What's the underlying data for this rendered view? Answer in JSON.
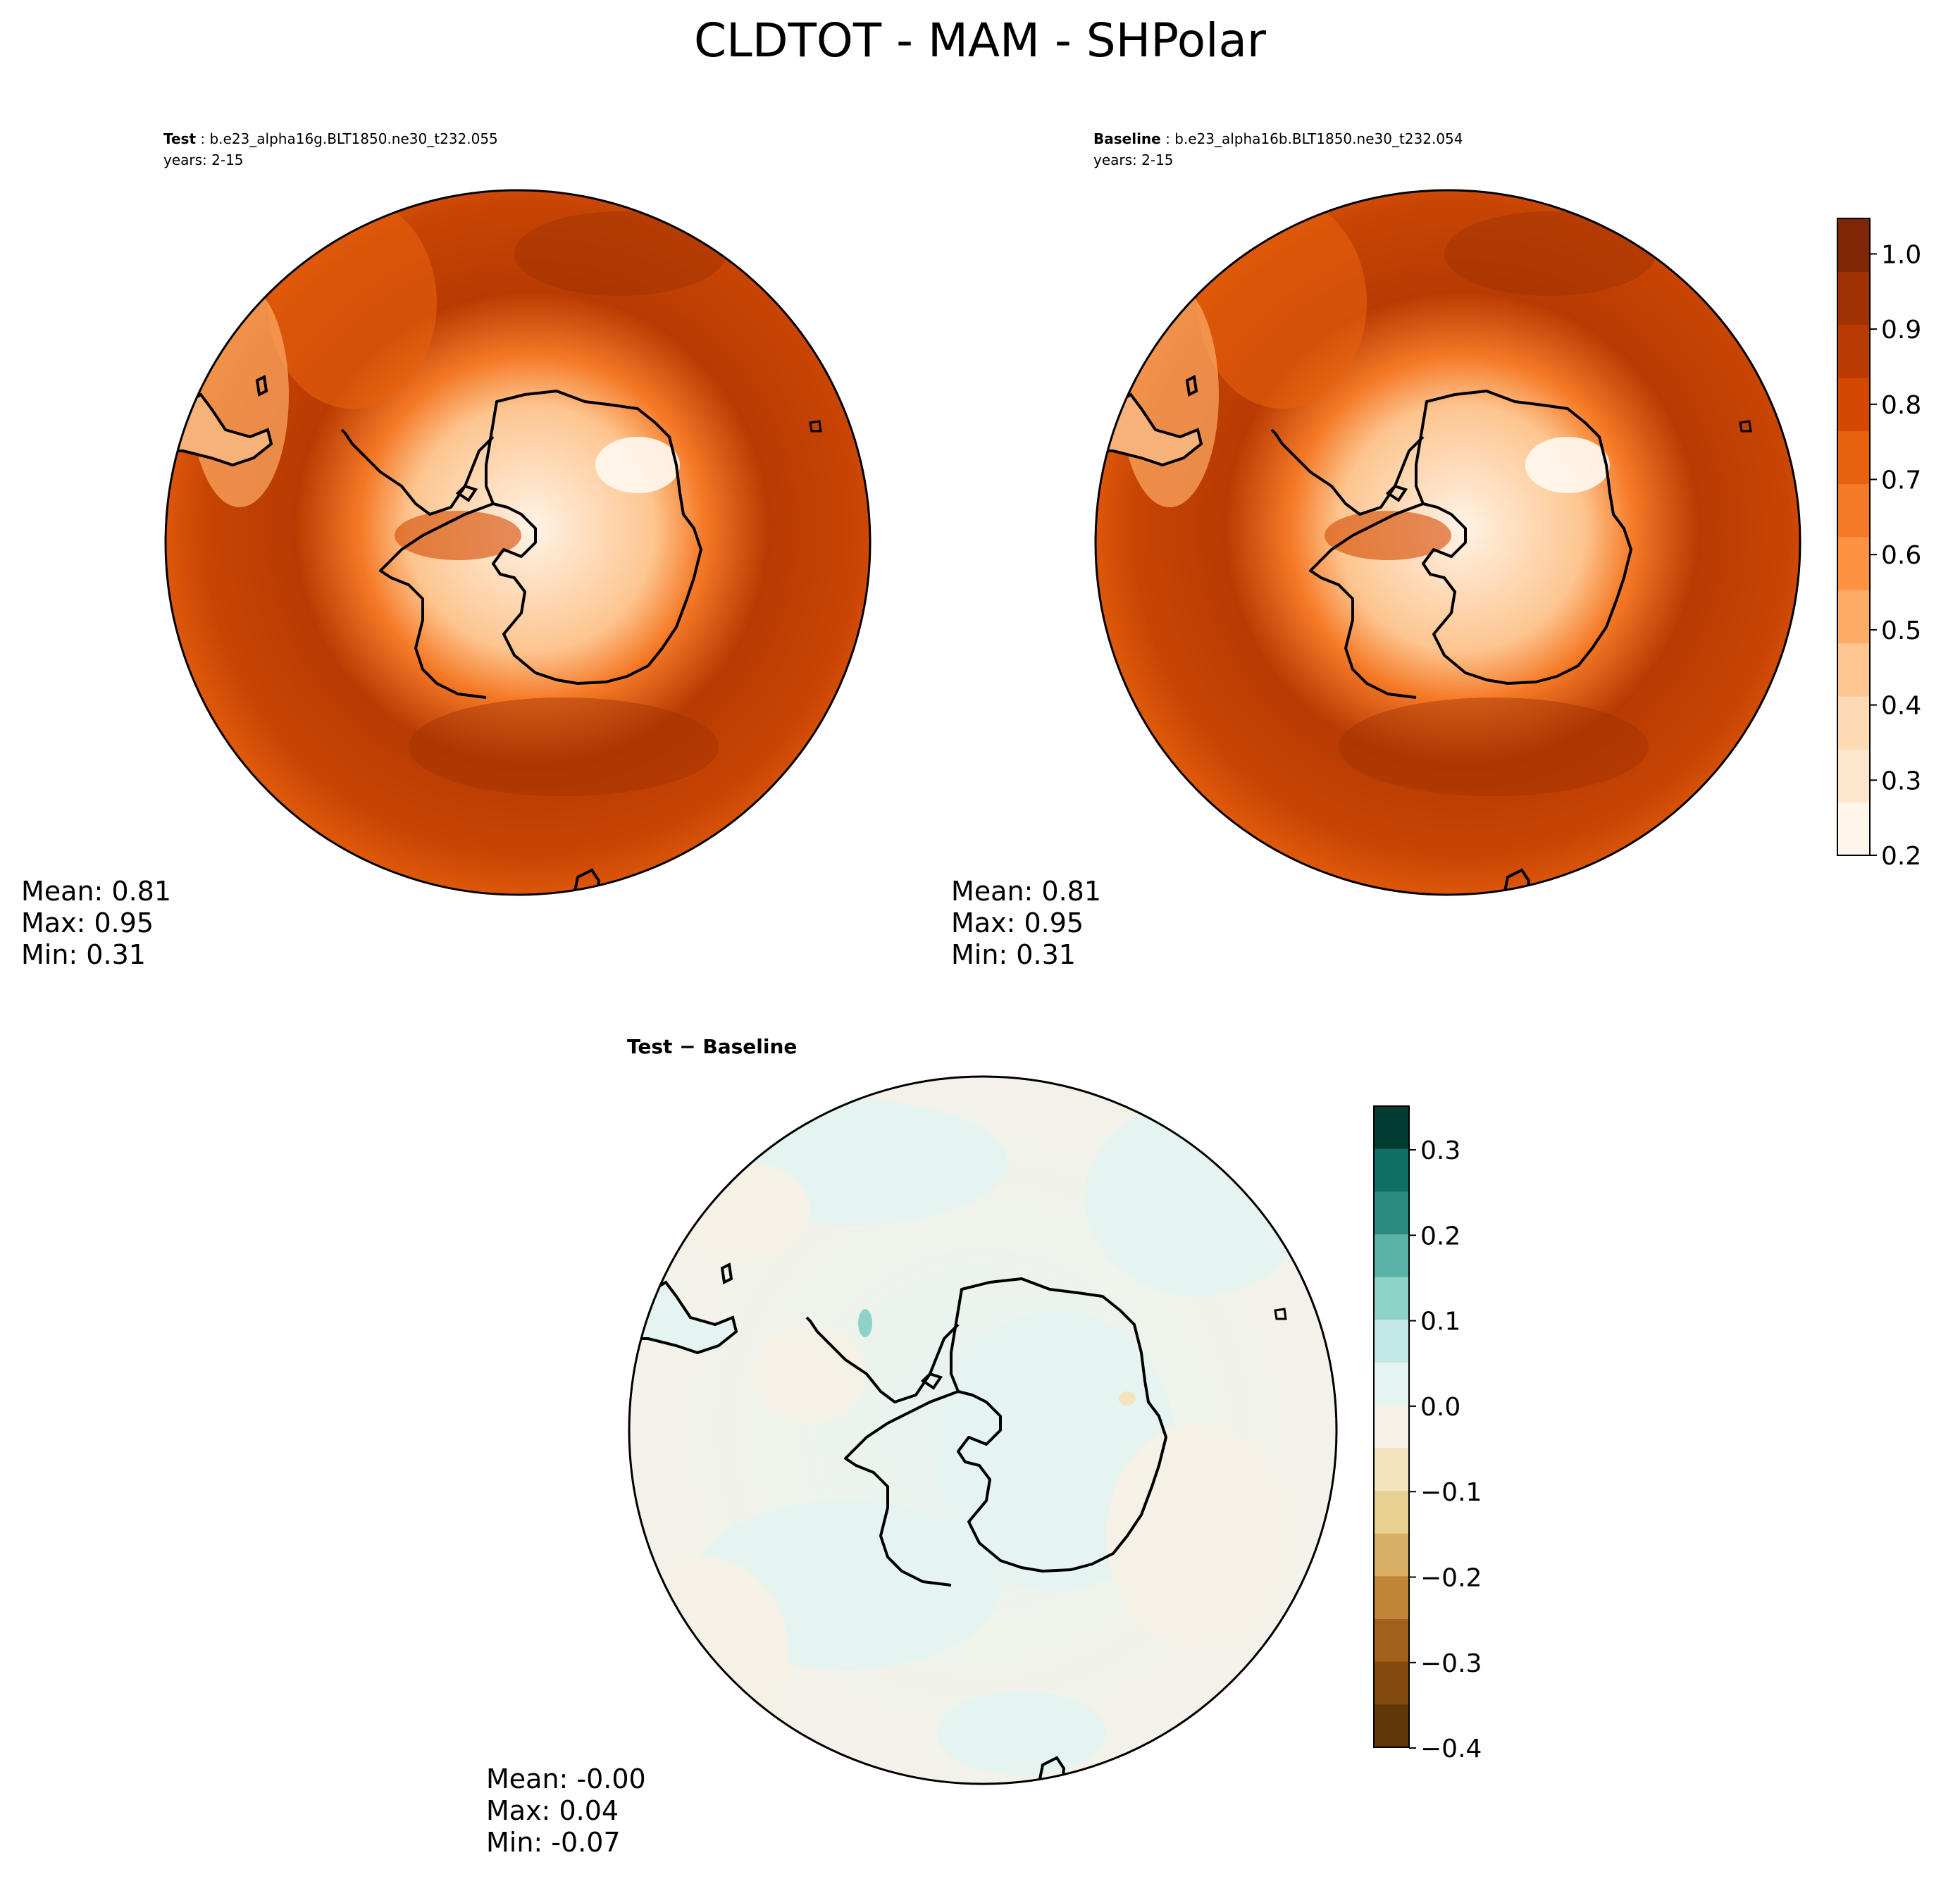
{
  "figure": {
    "title": "CLDTOT - MAM - SHPolar"
  },
  "panels": [
    {
      "id": "test",
      "label_bold": "Test",
      "label_text": " : b.e23_alpha16g.BLT1850.ne30_t232.055",
      "years": "years: 2-15",
      "stats": {
        "mean": "Mean:  0.81",
        "max": "Max:  0.95",
        "min": "Min:  0.31"
      }
    },
    {
      "id": "baseline",
      "label_bold": "Baseline",
      "label_text": " : b.e23_alpha16b.BLT1850.ne30_t232.054",
      "years": "years: 2-15",
      "stats": {
        "mean": "Mean:  0.81",
        "max": "Max:  0.95",
        "min": "Min:  0.31"
      }
    },
    {
      "id": "diff",
      "label_bold": "Test − Baseline",
      "stats": {
        "mean": "Mean: -0.00",
        "max": "Max:  0.04",
        "min": "Min: -0.07"
      }
    }
  ],
  "colorbars": {
    "main": {
      "ticks": [
        "0.2",
        "0.3",
        "0.4",
        "0.5",
        "0.6",
        "0.7",
        "0.8",
        "0.9",
        "1.0"
      ],
      "colors": [
        "#fff5eb",
        "#fee6ce",
        "#fdd9b4",
        "#fdc590",
        "#fdac67",
        "#fd9243",
        "#f57a27",
        "#e8610e",
        "#d44902",
        "#b83b03",
        "#9f3103",
        "#7f2704"
      ]
    },
    "diff": {
      "ticks": [
        "0.3",
        "0.2",
        "0.1",
        "0.0",
        "−0.1",
        "−0.2",
        "−0.3",
        "−0.4"
      ],
      "colors": [
        "#003d30",
        "#0f6f66",
        "#2a8a82",
        "#5ab2a8",
        "#8fd3c8",
        "#c4e9e4",
        "#e5f3f1",
        "#f5f1e7",
        "#f4e4bd",
        "#e8cf92",
        "#d8af64",
        "#c08538",
        "#a0611c",
        "#824b0b",
        "#5f3708"
      ]
    }
  }
}
